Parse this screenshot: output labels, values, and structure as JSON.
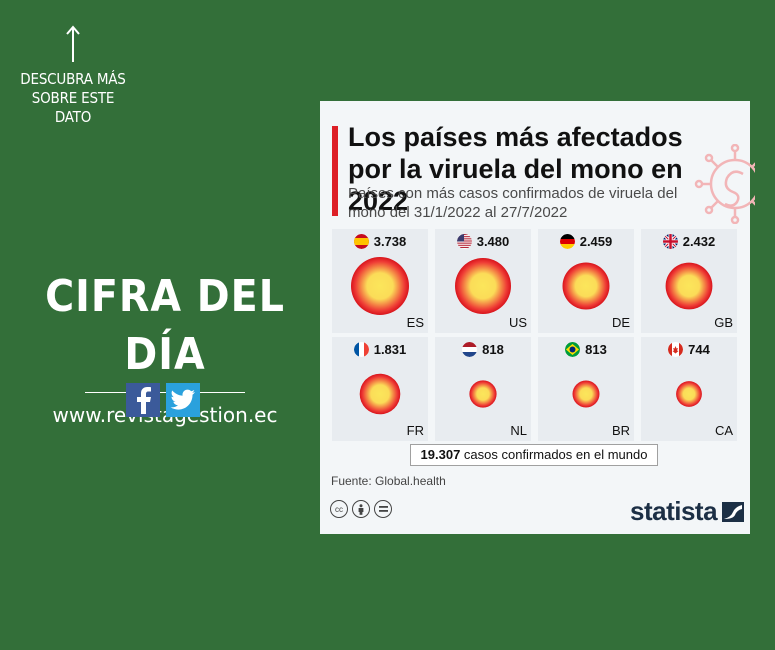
{
  "promo": {
    "cta": "DESCUBRA MÁS SOBRE ESTE DATO",
    "heading": "CIFRA DEL DÍA",
    "url": "www.revistagestion.ec"
  },
  "card": {
    "title": "Los países más afectados por la viruela del mono en 2022",
    "subtitle": "Países con más casos confirmados de viruela del mono del 31/1/2022 al 27/7/2022",
    "total_value": "19.307",
    "total_text": " casos confirmados en el mundo",
    "source": "Fuente: Global.health",
    "brand": "statista",
    "accent_color": "#dd1f26"
  },
  "countries": [
    {
      "code": "ES",
      "value_label": "3.738",
      "cases": 3738
    },
    {
      "code": "US",
      "value_label": "3.480",
      "cases": 3480
    },
    {
      "code": "DE",
      "value_label": "2.459",
      "cases": 2459
    },
    {
      "code": "GB",
      "value_label": "2.432",
      "cases": 2432
    },
    {
      "code": "FR",
      "value_label": "1.831",
      "cases": 1831
    },
    {
      "code": "NL",
      "value_label": "818",
      "cases": 818
    },
    {
      "code": "BR",
      "value_label": "813",
      "cases": 813
    },
    {
      "code": "CA",
      "value_label": "744",
      "cases": 744
    }
  ],
  "icons": [
    "arrow-up-icon",
    "facebook-icon",
    "twitter-icon",
    "virus-icon",
    "cc-icon",
    "by-icon",
    "nd-icon",
    "statista-logo-icon"
  ]
}
